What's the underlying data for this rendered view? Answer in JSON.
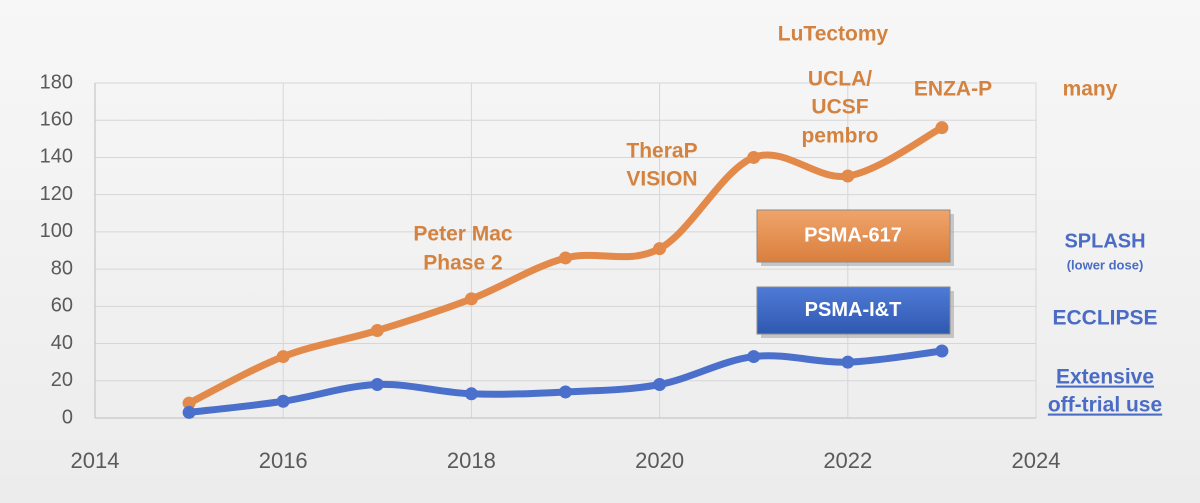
{
  "chart_data": {
    "type": "line",
    "x": [
      2015,
      2016,
      2017,
      2018,
      2019,
      2020,
      2021,
      2022,
      2023
    ],
    "series": [
      {
        "name": "PSMA-617",
        "color": "#e3894a",
        "values": [
          8,
          33,
          47,
          64,
          86,
          91,
          140,
          130,
          156
        ]
      },
      {
        "name": "PSMA-I&T",
        "color": "#4a70cc",
        "values": [
          3,
          9,
          18,
          13,
          14,
          18,
          33,
          30,
          36
        ]
      }
    ],
    "xlim": [
      2014,
      2024
    ],
    "xticks": [
      2014,
      2016,
      2018,
      2020,
      2022,
      2024
    ],
    "ylim": [
      0,
      180
    ],
    "yticks": [
      0,
      20,
      40,
      60,
      80,
      100,
      120,
      140,
      160,
      180
    ],
    "grid": true,
    "annotations": [
      {
        "lines": [
          "LuTectomy"
        ],
        "color": "#d4823f"
      },
      {
        "lines": [
          "UCLA/",
          "UCSF",
          "pembro"
        ],
        "color": "#d4823f"
      },
      {
        "lines": [
          "ENZA-P"
        ],
        "color": "#d4823f"
      },
      {
        "lines": [
          "many"
        ],
        "color": "#d4823f"
      },
      {
        "lines": [
          "TheraP",
          "VISION"
        ],
        "color": "#d4823f"
      },
      {
        "lines": [
          "Peter Mac",
          "Phase 2"
        ],
        "color": "#d4823f"
      },
      {
        "lines": [
          "SPLASH",
          "(lower dose)"
        ],
        "color": "#4a6cc4"
      },
      {
        "lines": [
          "ECCLIPSE"
        ],
        "color": "#4a6cc4"
      },
      {
        "lines": [
          "Extensive",
          "off-trial use"
        ],
        "color": "#4a6cc4",
        "underline": true
      }
    ]
  }
}
